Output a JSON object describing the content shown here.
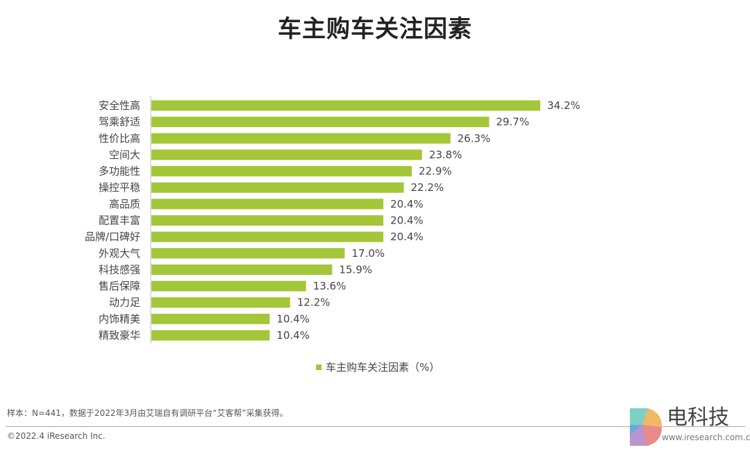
{
  "chart_data": {
    "type": "bar",
    "orientation": "horizontal",
    "title": "车主购车关注因素",
    "categories": [
      "安全性高",
      "驾乘舒适",
      "性价比高",
      "空间大",
      "多功能性",
      "操控平稳",
      "高品质",
      "配置丰富",
      "品牌/口碑好",
      "外观大气",
      "科技感强",
      "售后保障",
      "动力足",
      "内饰精美",
      "精致豪华"
    ],
    "values": [
      34.2,
      29.7,
      26.3,
      23.8,
      22.9,
      22.2,
      20.4,
      20.4,
      20.4,
      17.0,
      15.9,
      13.6,
      12.2,
      10.4,
      10.4
    ],
    "value_labels": [
      "34.2%",
      "29.7%",
      "26.3%",
      "23.8%",
      "22.9%",
      "22.2%",
      "20.4%",
      "20.4%",
      "20.4%",
      "17.0%",
      "15.9%",
      "13.6%",
      "12.2%",
      "10.4%",
      "10.4%"
    ],
    "legend": [
      "车主购车关注因素（%）"
    ],
    "legend_position": "bottom",
    "xlim": [
      0,
      34.2
    ],
    "grid": false,
    "bar_color": "#a4c639"
  },
  "footer": {
    "note": "样本：N=441，数据于2022年3月由艾瑞自有调研平台“艾客帮”采集获得。",
    "copyright": "©2022.4 iResearch Inc.",
    "logo_text": "电科技",
    "logo_url": "www.iresearch.com.cn"
  }
}
